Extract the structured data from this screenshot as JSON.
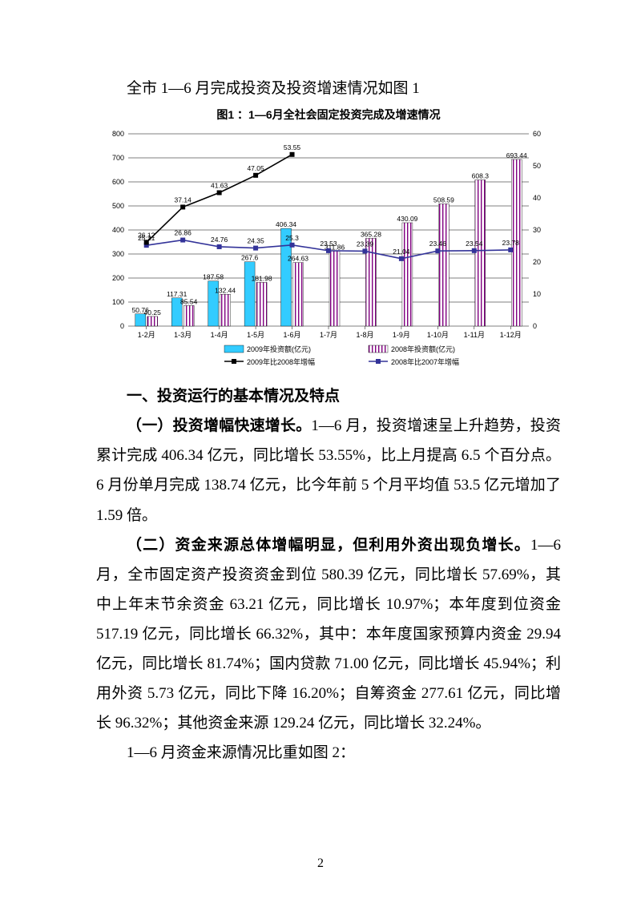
{
  "intro": "全市 1—6 月完成投资及投资增速情况如图 1",
  "chart": {
    "title": "图1 ：1—6月全社会固定投资完成及增速情况",
    "type": "bar-line-combo",
    "background_color": "#ffffff",
    "grid_color": "#000000",
    "categories": [
      "1-2月",
      "1-3月",
      "1-4月",
      "1-5月",
      "1-6月",
      "1-7月",
      "1-8月",
      "1-9月",
      "1-10月",
      "1-11月",
      "1-12月"
    ],
    "left_axis": {
      "min": 0,
      "max": 800,
      "step": 100
    },
    "right_axis": {
      "min": 0,
      "max": 60,
      "step": 10
    },
    "series": {
      "bar2009": {
        "label": "2009年投资额(亿元)",
        "color": "#33ccff",
        "values": [
          50.76,
          117.31,
          187.58,
          267.6,
          406.34,
          null,
          null,
          null,
          null,
          null,
          null
        ]
      },
      "bar2008": {
        "label": "2008年投资额(亿元)",
        "color": "#800080",
        "pattern": "stripes",
        "values": [
          40.25,
          85.54,
          132.44,
          181.98,
          264.63,
          311.86,
          365.28,
          430.09,
          508.59,
          608.3,
          693.44
        ]
      },
      "line2009v2008": {
        "label": "2009年比2008年增幅",
        "color": "#000000",
        "marker": "square",
        "values": [
          26.12,
          37.14,
          41.63,
          47.05,
          53.55,
          null,
          null,
          null,
          null,
          null,
          null
        ]
      },
      "line2008v2007": {
        "label": "2008年比2007年增幅",
        "color": "#333399",
        "marker": "square",
        "values": [
          25.21,
          26.86,
          24.76,
          24.35,
          25.3,
          23.53,
          23.39,
          21.04,
          23.46,
          23.54,
          23.78
        ]
      }
    }
  },
  "section1_head": "一、投资运行的基本情况及特点",
  "para1_bold": "（一）投资增幅快速增长。",
  "para1_rest": "1—6 月，投资增速呈上升趋势，投资累计完成 406.34 亿元，同比增长 53.55%，比上月提高 6.5 个百分点。6 月份单月完成 138.74 亿元，比今年前 5 个月平均值 53.5 亿元增加了 1.59 倍。",
  "para2_bold": "（二）资金来源总体增幅明显，但利用外资出现负增长。",
  "para2_rest": "1—6 月，全市固定资产投资资金到位 580.39 亿元，同比增长 57.69%，其中上年末节余资金 63.21 亿元，同比增长 10.97%；本年度到位资金 517.19 亿元，同比增长 66.32%，其中：本年度国家预算内资金 29.94 亿元，同比增长 81.74%；国内贷款 71.00 亿元，同比增长 45.94%；利用外资 5.73 亿元，同比下降 16.20%；自筹资金 277.61 亿元，同比增长 96.32%；其他资金来源 129.24 亿元，同比增长 32.24%。",
  "para3": "1—6 月资金来源情况比重如图 2：",
  "page_number": "2"
}
